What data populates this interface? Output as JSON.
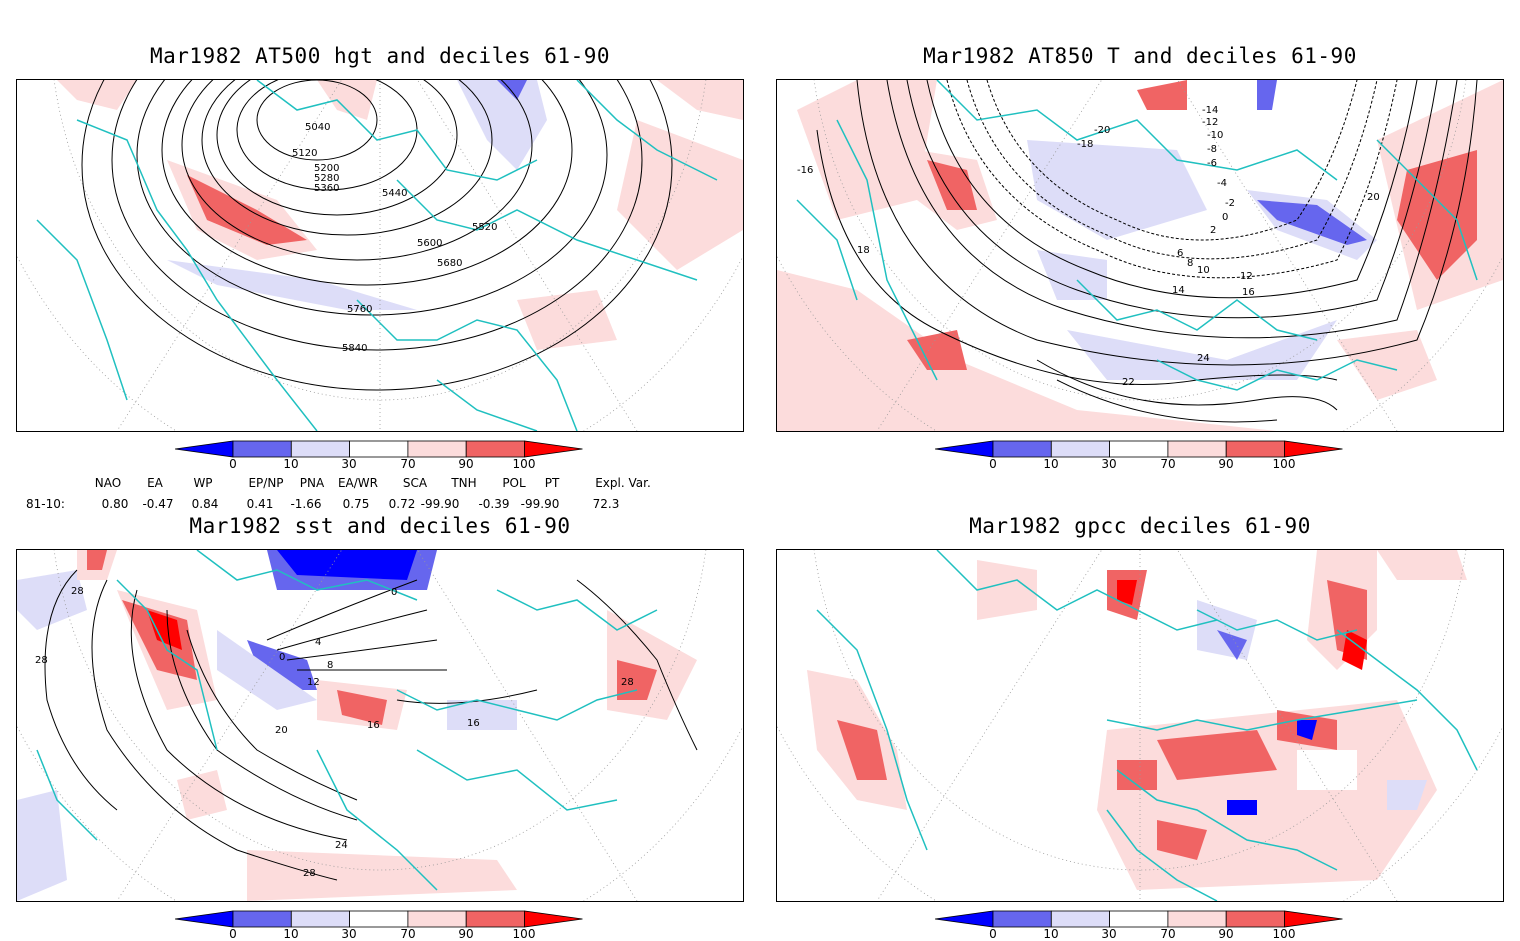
{
  "panels": [
    {
      "title": "Mar1982 AT500 hgt and deciles 61-90",
      "contour_labels": [
        "5040",
        "5120",
        "5200",
        "5280",
        "5360",
        "5440",
        "5520",
        "5600",
        "5680",
        "5760",
        "5840"
      ]
    },
    {
      "title": "Mar1982 AT850 T and deciles 61-90",
      "contour_labels": [
        "-16",
        "-14",
        "-12",
        "-10",
        "-8",
        "-6",
        "-4",
        "-2",
        "0",
        "2",
        "6",
        "8",
        "10",
        "12",
        "14",
        "16",
        "18",
        "20",
        "22",
        "24",
        "-18",
        "-20"
      ]
    },
    {
      "title": "Mar1982 sst and deciles 61-90",
      "contour_labels": [
        "0",
        "4",
        "8",
        "12",
        "16",
        "20",
        "24",
        "28"
      ]
    },
    {
      "title": "Mar1982 gpcc deciles 61-90",
      "contour_labels": []
    }
  ],
  "colorbar": {
    "labels": [
      "0",
      "10",
      "30",
      "70",
      "90",
      "100"
    ],
    "colors": [
      "#0000ff",
      "#6666ee",
      "#ddddf8",
      "#ffffff",
      "#fcdcdc",
      "#f06464",
      "#ff0000"
    ]
  },
  "indices": {
    "headers": [
      "NAO",
      "EA",
      "WP",
      "EP/NP",
      "PNA",
      "EA/WR",
      "SCA",
      "TNH",
      "POL",
      "PT",
      "Expl. Var."
    ],
    "row_label": "81-10:",
    "values": [
      "0.80",
      "-0.47",
      "0.84",
      "0.41",
      "-1.66",
      "0.75",
      "0.72",
      "-99.90",
      "-0.39",
      "-99.90",
      "72.3"
    ]
  },
  "colors": {
    "coastline": "#20c0c0",
    "contour": "#000000",
    "grid": "#999999"
  }
}
